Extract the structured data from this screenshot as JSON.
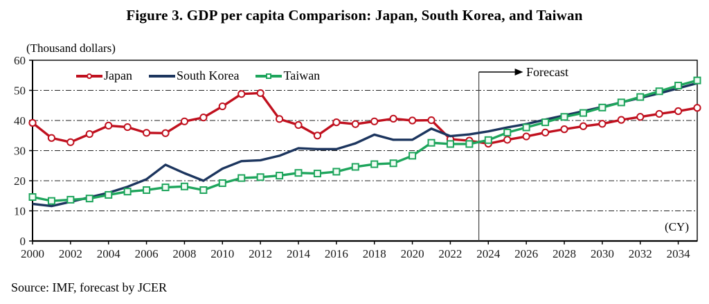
{
  "figure": {
    "title": "Figure 3. GDP per capita Comparison: Japan, South Korea, and Taiwan",
    "unit_label": "(Thousand dollars)",
    "forecast_label": "Forecast",
    "cy_label": "(CY)",
    "source": "Source: IMF, forecast by JCER"
  },
  "chart_data": {
    "type": "line",
    "title": "Figure 3. GDP per capita Comparison: Japan, South Korea, and Taiwan",
    "ylabel": "(Thousand dollars)",
    "xlabel": "(CY)",
    "ylim": [
      0,
      60
    ],
    "ytick_step": 10,
    "xlim": [
      2000,
      2035
    ],
    "xticks": [
      2000,
      2002,
      2004,
      2006,
      2008,
      2010,
      2012,
      2014,
      2016,
      2018,
      2020,
      2022,
      2024,
      2026,
      2028,
      2030,
      2032,
      2034
    ],
    "grid": "horizontal-dashed",
    "legend_position": "top-left-inside",
    "forecast_start": 2023.5,
    "forecast_label": "Forecast",
    "x": [
      2000,
      2001,
      2002,
      2003,
      2004,
      2005,
      2006,
      2007,
      2008,
      2009,
      2010,
      2011,
      2012,
      2013,
      2014,
      2015,
      2016,
      2017,
      2018,
      2019,
      2020,
      2021,
      2022,
      2023,
      2024,
      2025,
      2026,
      2027,
      2028,
      2029,
      2030,
      2031,
      2032,
      2033,
      2034,
      2035
    ],
    "series": [
      {
        "name": "Japan",
        "color": "#c0101e",
        "marker": "circle",
        "values": [
          39.2,
          34.2,
          32.8,
          35.5,
          38.3,
          37.8,
          35.9,
          35.8,
          39.7,
          41.0,
          44.7,
          48.8,
          49.1,
          40.5,
          38.5,
          35.0,
          39.4,
          38.8,
          39.7,
          40.6,
          40.0,
          40.1,
          33.8,
          33.3,
          32.3,
          33.6,
          34.7,
          36.0,
          37.1,
          38.1,
          38.9,
          40.2,
          41.2,
          42.2,
          43.1,
          44.2
        ]
      },
      {
        "name": "South Korea",
        "color": "#1c355e",
        "marker": "none",
        "values": [
          12.3,
          11.6,
          13.0,
          14.5,
          16.0,
          18.0,
          20.5,
          25.3,
          22.5,
          20.0,
          24.0,
          26.5,
          26.8,
          28.3,
          30.8,
          30.5,
          30.5,
          32.4,
          35.3,
          33.6,
          33.6,
          37.3,
          34.8,
          35.4,
          36.4,
          37.7,
          38.8,
          40.3,
          41.7,
          43.1,
          44.5,
          46.0,
          47.5,
          49.0,
          50.7,
          52.4
        ]
      },
      {
        "name": "Taiwan",
        "color": "#1ea55c",
        "marker": "square",
        "values": [
          14.6,
          13.3,
          13.7,
          14.1,
          15.3,
          16.4,
          16.9,
          17.8,
          18.1,
          16.9,
          19.2,
          20.9,
          21.2,
          21.7,
          22.6,
          22.4,
          23.0,
          24.6,
          25.5,
          25.8,
          28.3,
          32.6,
          32.2,
          32.2,
          33.5,
          36.0,
          37.7,
          39.4,
          41.2,
          42.5,
          44.3,
          46.0,
          47.8,
          49.7,
          51.6,
          53.3
        ]
      }
    ]
  }
}
